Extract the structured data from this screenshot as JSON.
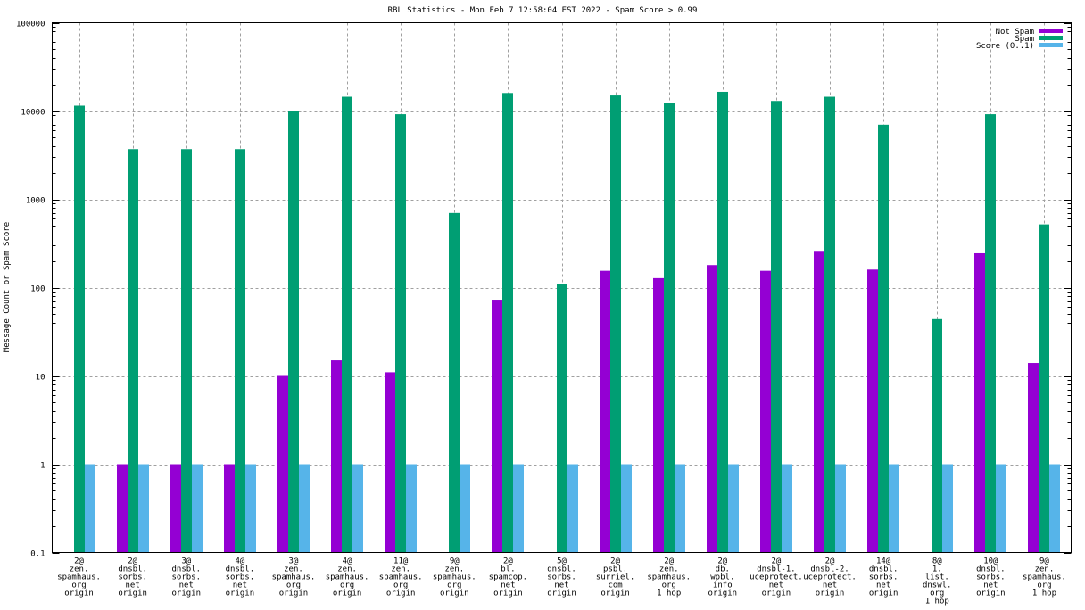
{
  "chart_data": {
    "type": "bar",
    "title": "RBL Statistics - Mon Feb  7 12:58:04 EST 2022 - Spam Score > 0.99",
    "xlabel": "",
    "ylabel": "Message Count or Spam Score",
    "yscale": "log",
    "ylim": [
      0.1,
      100000
    ],
    "yticks": [
      "0.1",
      "1",
      "10",
      "100",
      "1000",
      "10000",
      "100000"
    ],
    "ytick_values": [
      0.1,
      1,
      10,
      100,
      1000,
      10000,
      100000
    ],
    "grid": true,
    "legend_position": "top-right",
    "categories": [
      [
        "2@",
        "zen.",
        "spamhaus.",
        "org",
        "origin"
      ],
      [
        "2@",
        "dnsbl.",
        "sorbs.",
        "net",
        "origin"
      ],
      [
        "3@",
        "dnsbl.",
        "sorbs.",
        "net",
        "origin"
      ],
      [
        "4@",
        "dnsbl.",
        "sorbs.",
        "net",
        "origin"
      ],
      [
        "3@",
        "zen.",
        "spamhaus.",
        "org",
        "origin"
      ],
      [
        "4@",
        "zen.",
        "spamhaus.",
        "org",
        "origin"
      ],
      [
        "11@",
        "zen.",
        "spamhaus.",
        "org",
        "origin"
      ],
      [
        "9@",
        "zen.",
        "spamhaus.",
        "org",
        "origin"
      ],
      [
        "2@",
        "bl.",
        "spamcop.",
        "net",
        "origin"
      ],
      [
        "5@",
        "dnsbl.",
        "sorbs.",
        "net",
        "origin"
      ],
      [
        "2@",
        "psbl.",
        "surriel.",
        "com",
        "origin"
      ],
      [
        "2@",
        "zen.",
        "spamhaus.",
        "org",
        "1 hop"
      ],
      [
        "2@",
        "db.",
        "wpbl.",
        "info",
        "origin"
      ],
      [
        "2@",
        "dnsbl-1.",
        "uceprotect.",
        "net",
        "origin"
      ],
      [
        "2@",
        "dnsbl-2.",
        "uceprotect.",
        "net",
        "origin"
      ],
      [
        "14@",
        "dnsbl.",
        "sorbs.",
        "net",
        "origin"
      ],
      [
        "8@",
        "1.",
        "list.",
        "dnswl.",
        "org",
        "1 hop"
      ],
      [
        "10@",
        "dnsbl.",
        "sorbs.",
        "net",
        "origin"
      ],
      [
        "9@",
        "zen.",
        "spamhaus.",
        "org",
        "1 hop"
      ]
    ],
    "series": [
      {
        "name": "Not Spam",
        "color": "#9400d3",
        "values": [
          0,
          1,
          1,
          1,
          10,
          15,
          11,
          0,
          73,
          0,
          155,
          128,
          180,
          155,
          255,
          160,
          0,
          245,
          14
        ]
      },
      {
        "name": "Spam",
        "color": "#009e73",
        "values": [
          11500,
          3700,
          3700,
          3700,
          10000,
          14500,
          9200,
          700,
          16000,
          110,
          15000,
          12300,
          16500,
          13000,
          14500,
          7000,
          44,
          9200,
          520
        ]
      },
      {
        "name": "Score (0..1)",
        "color": "#56b4e9",
        "values": [
          1,
          1,
          1,
          1,
          1,
          1,
          1,
          1,
          1,
          1,
          1,
          1,
          1,
          1,
          1,
          1,
          1,
          1,
          1
        ]
      }
    ]
  }
}
